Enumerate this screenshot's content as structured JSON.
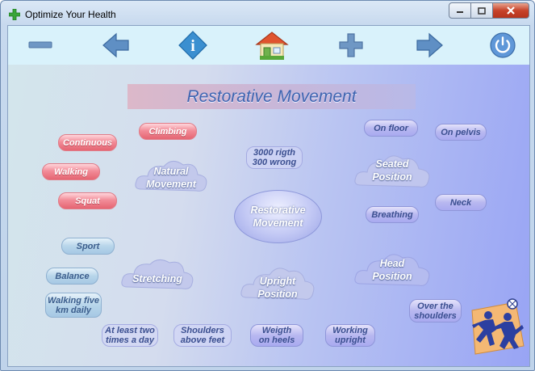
{
  "window": {
    "title": "Optimize Your Health"
  },
  "toolbar": {
    "buttons": [
      "minus-icon",
      "arrow-left-icon",
      "info-icon",
      "home-icon",
      "plus-icon",
      "arrow-right-icon",
      "power-icon"
    ],
    "info_glyph": "i"
  },
  "banner": {
    "title": "Restorative Movement"
  },
  "center": {
    "label": "Restorative\nMovement"
  },
  "clouds": {
    "natural": "Natural\nMovement",
    "stretching": "Stretching",
    "upright": "Upright\nPosition",
    "seated": "Seated\nPosition",
    "head": "Head\nPosition"
  },
  "pills": {
    "climbing": "Climbing",
    "continuous": "Continuous",
    "walking": "Walking",
    "squat": "Squat",
    "sport": "Sport",
    "balance": "Balance",
    "walking_five": "Walking five\nkm daily",
    "at_least": "At least two\ntimes a day",
    "shoulders_above": "Shoulders\nabove feet",
    "weigth_heels": "Weigth\non heels",
    "working_upright": "Working\nupright",
    "rigth_wrong": "3000 rigth\n300 wrong",
    "on_floor": "On floor",
    "on_pelvis": "On pelvis",
    "breathing": "Breathing",
    "neck": "Neck",
    "over_shoulders": "Over the\nshoulders"
  },
  "colors": {
    "accent": "#3e64b0",
    "red_pill": "#e56572",
    "blue_pill": "#a6c8e4"
  }
}
